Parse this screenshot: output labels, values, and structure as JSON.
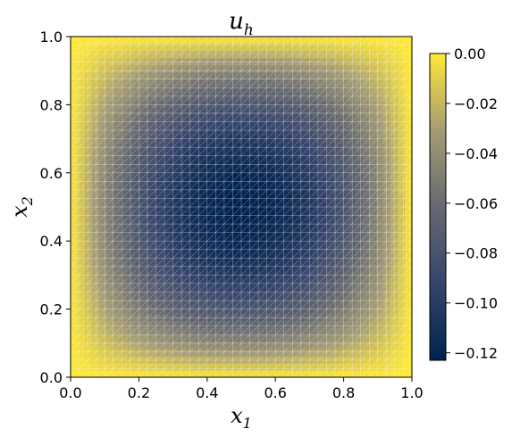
{
  "chart_data": {
    "type": "heatmap",
    "title": {
      "base": "u",
      "sub": "h"
    },
    "xlabel": {
      "base": "x",
      "sub": "1"
    },
    "ylabel": {
      "base": "x",
      "sub": "2"
    },
    "xlim": [
      0.0,
      1.0
    ],
    "ylim": [
      0.0,
      1.0
    ],
    "xticks": [
      "0.0",
      "0.2",
      "0.4",
      "0.6",
      "0.8",
      "1.0"
    ],
    "yticks": [
      "0.0",
      "0.2",
      "0.4",
      "0.6",
      "0.8",
      "1.0"
    ],
    "colorbar": {
      "range": [
        -0.123,
        0.0
      ],
      "ticks": [
        {
          "value": 0.0,
          "label": "0.00"
        },
        {
          "value": -0.02,
          "label": "−0.02"
        },
        {
          "value": -0.04,
          "label": "−0.04"
        },
        {
          "value": -0.06,
          "label": "−0.06"
        },
        {
          "value": -0.08,
          "label": "−0.08"
        },
        {
          "value": -0.1,
          "label": "−0.10"
        },
        {
          "value": -0.12,
          "label": "−0.12"
        }
      ],
      "colormap": "cividis"
    },
    "field": {
      "min_value": -0.123,
      "min_location": [
        0.5,
        0.5
      ],
      "boundary_value": 0.0
    },
    "mesh": {
      "overlay": true,
      "divisions": 40,
      "line_color": "#ffffff"
    },
    "grid": false
  }
}
